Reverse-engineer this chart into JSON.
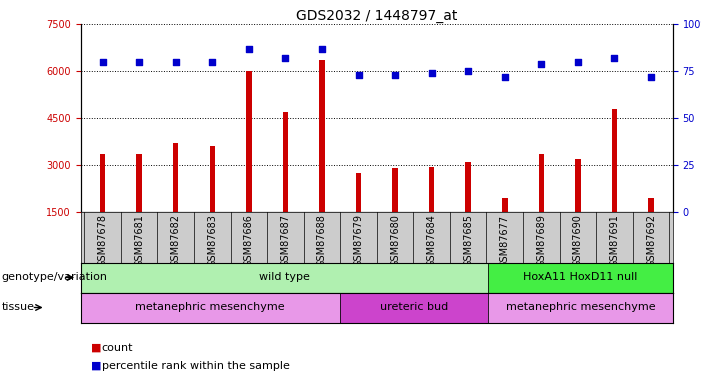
{
  "title": "GDS2032 / 1448797_at",
  "samples": [
    "GSM87678",
    "GSM87681",
    "GSM87682",
    "GSM87683",
    "GSM87686",
    "GSM87687",
    "GSM87688",
    "GSM87679",
    "GSM87680",
    "GSM87684",
    "GSM87685",
    "GSM87677",
    "GSM87689",
    "GSM87690",
    "GSM87691",
    "GSM87692"
  ],
  "counts": [
    3350,
    3350,
    3700,
    3600,
    6000,
    4700,
    6350,
    2750,
    2900,
    2950,
    3100,
    1950,
    3350,
    3200,
    4800,
    1950
  ],
  "percentile_ranks": [
    80,
    80,
    80,
    80,
    87,
    82,
    87,
    73,
    73,
    74,
    75,
    72,
    79,
    80,
    82,
    72
  ],
  "ylim_left": [
    1500,
    7500
  ],
  "ylim_right": [
    0,
    100
  ],
  "yticks_left": [
    1500,
    3000,
    4500,
    6000,
    7500
  ],
  "yticks_right": [
    0,
    25,
    50,
    75,
    100
  ],
  "bar_color": "#cc0000",
  "scatter_color": "#0000cc",
  "genotype_groups": [
    {
      "label": "wild type",
      "start": 0,
      "end": 10,
      "color": "#b0f0b0"
    },
    {
      "label": "HoxA11 HoxD11 null",
      "start": 11,
      "end": 15,
      "color": "#44ee44"
    }
  ],
  "tissue_groups": [
    {
      "label": "metanephric mesenchyme",
      "start": 0,
      "end": 6,
      "color": "#e898e8"
    },
    {
      "label": "ureteric bud",
      "start": 7,
      "end": 10,
      "color": "#cc44cc"
    },
    {
      "label": "metanephric mesenchyme",
      "start": 11,
      "end": 15,
      "color": "#e898e8"
    }
  ],
  "row_label_genotype": "genotype/variation",
  "row_label_tissue": "tissue",
  "title_fontsize": 10,
  "tick_fontsize": 7,
  "label_fontsize": 8,
  "annot_fontsize": 8,
  "names_bg_color": "#cccccc"
}
